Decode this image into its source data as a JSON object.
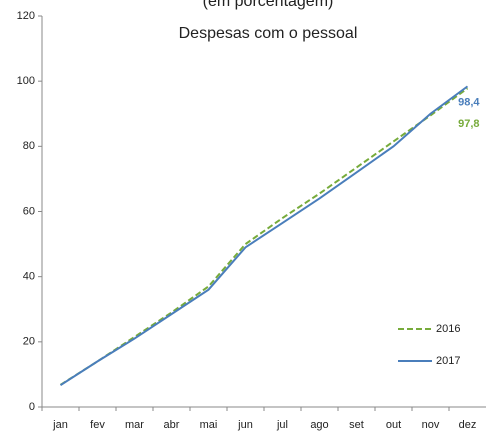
{
  "chart_data": {
    "type": "line",
    "subtitle": "(em porcentagem)",
    "title": "Despesas com o pessoal",
    "categories": [
      "jan",
      "fev",
      "mar",
      "abr",
      "mai",
      "jun",
      "jul",
      "ago",
      "set",
      "out",
      "nov",
      "dez"
    ],
    "series": [
      {
        "name": "2016",
        "color": "#77ab3b",
        "dash": true,
        "values": [
          6.8,
          14,
          21.5,
          29,
          37,
          50,
          58,
          65.5,
          73.5,
          81.5,
          89.5,
          97.8
        ],
        "value_labels": [
          null,
          null,
          null,
          null,
          null,
          null,
          null,
          null,
          null,
          null,
          null,
          "97,8"
        ]
      },
      {
        "name": "2017",
        "color": "#4a7ebb",
        "dash": false,
        "values": [
          6.7,
          14,
          21,
          28.5,
          36,
          49,
          56.5,
          64,
          72,
          80,
          90,
          98.4
        ],
        "value_labels": [
          null,
          null,
          null,
          null,
          null,
          null,
          null,
          null,
          null,
          null,
          null,
          "98,4"
        ]
      }
    ],
    "ylim": [
      0,
      120
    ],
    "yticks": [
      0,
      20,
      40,
      60,
      80,
      100,
      120
    ],
    "grid": false
  }
}
